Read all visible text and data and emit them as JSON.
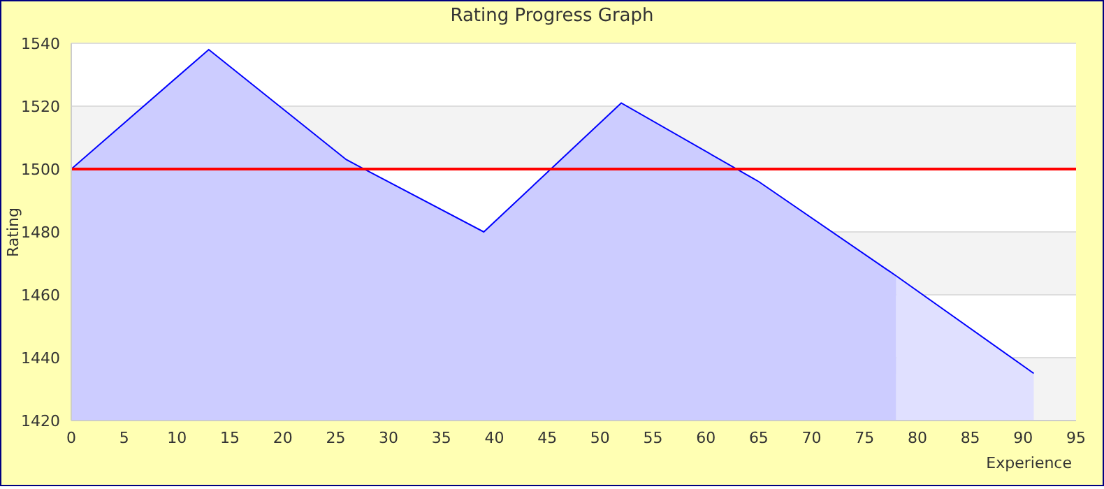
{
  "chart_data": {
    "type": "area",
    "title": "Rating Progress Graph",
    "xlabel": "Experience",
    "ylabel": "Rating",
    "series": [
      {
        "color": "#ccccff",
        "x": [
          0,
          13,
          26,
          39,
          52,
          65,
          78
        ],
        "values": [
          1500,
          1538,
          1503,
          1480,
          1521,
          1496,
          1466
        ]
      },
      {
        "color": "#e0e0ff",
        "x": [
          78,
          91
        ],
        "values": [
          1466,
          1435
        ]
      }
    ],
    "xlim": [
      0,
      95
    ],
    "xticks": [
      0,
      5,
      10,
      15,
      20,
      25,
      30,
      35,
      40,
      45,
      50,
      55,
      60,
      65,
      70,
      75,
      80,
      85,
      90,
      95
    ],
    "ylim": [
      1420,
      1540
    ],
    "yticks": [
      1420,
      1440,
      1460,
      1480,
      1500,
      1520,
      1540
    ],
    "grid": "y",
    "legend": false,
    "ref_lines": [
      {
        "axis": "y",
        "value": 1500,
        "color": "#ff0000"
      }
    ]
  }
}
